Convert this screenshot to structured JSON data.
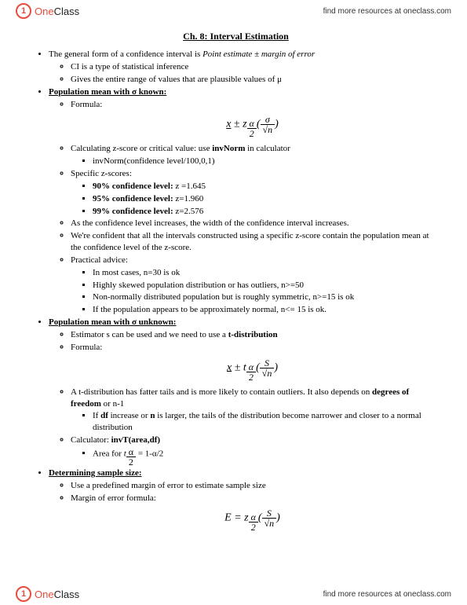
{
  "brand": {
    "one": "One",
    "class": "Class",
    "tagline": "find more resources at oneclass.com",
    "badge": "1"
  },
  "title": "Ch. 8: Interval Estimation",
  "items": {
    "l1": "The general form of a confidence interval is",
    "l1i": "Point estimate ± margin of error",
    "l2": "CI is a type of statistical inference",
    "l3": "Gives the entire range of values that are plausible values of μ",
    "h1": "Population mean with σ known:",
    "l4": "Formula:",
    "l5": "Calculating z-score or critical value: use ",
    "l5b": "invNorm",
    "l5c": " in calculator",
    "l6": "invNorm(confidence level/100,0,1)",
    "l7": "Specific z-scores:",
    "l8": "90% confidence level:",
    "l8v": " z =1.645",
    "l9": "95% confidence level:",
    "l9v": " z=1.960",
    "l10": "99% confidence level:",
    "l10v": " z=2.576",
    "l11": "As the confidence level increases, the width of the confidence interval increases.",
    "l12": "We're confident that all the intervals constructed using a specific z-score contain the population mean at the confidence level of the z-score.",
    "l13": "Practical advice:",
    "l14": "In most cases, n=30 is ok",
    "l15": "Highly skewed population distribution or has outliers, n>=50",
    "l16": "Non-normally distributed population but is roughly symmetric, n>=15 is ok",
    "l17": "If the population appears to be approximately normal, n<= 15 is ok.",
    "h2": "Population mean with σ unknown:",
    "l18": "Estimator s can be used and we need to use a ",
    "l18b": "t-distribution",
    "l19": "Formula:",
    "l20": "A t-distribution has fatter tails and is more likely to contain outliers. It also depends on ",
    "l20b": "degrees of freedom",
    "l20c": " or n-1",
    "l21a": "If ",
    "l21b": "df",
    "l21c": " increase or ",
    "l21d": "n",
    "l21e": " is larger, the tails of the distribution become narrower and closer to a normal distribution",
    "l22": "Calculator: ",
    "l22b": "invT(area,df)",
    "l23a": "Area for ",
    "l23b": "= 1-α/2",
    "h3": "Determining sample size:",
    "l24": "Use a predefined margin of error to estimate sample size",
    "l25": "Margin of error formula:"
  },
  "formulas": {
    "f1": {
      "sym": "z",
      "num": "σ",
      "den": "√n"
    },
    "f2": {
      "sym": "t",
      "num": "S",
      "den": "√n"
    },
    "f3": {
      "lhs": "E =",
      "sym": "z",
      "num": "S",
      "den": "√n"
    },
    "half": "α",
    "halfd": "2"
  }
}
